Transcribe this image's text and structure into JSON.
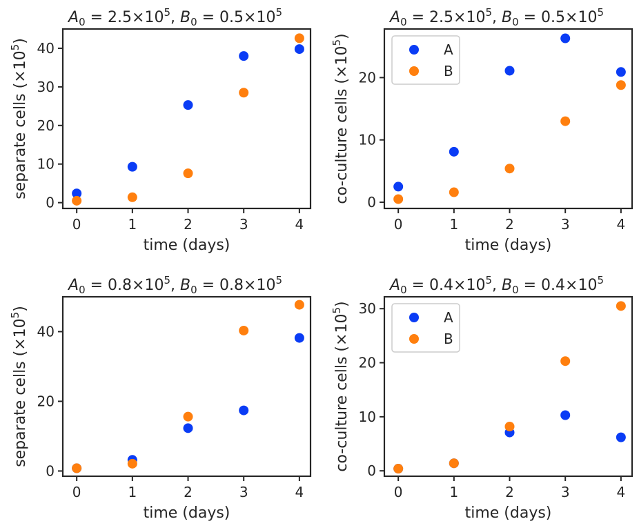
{
  "colors": {
    "A": "#0a3cf5",
    "B": "#ff7f0e"
  },
  "chart_data": [
    {
      "type": "scatter",
      "title": {
        "a_label": "A",
        "a_sub": "0",
        "a_val": "2.5×10",
        "a_exp": "5",
        "b_label": "B",
        "b_sub": "0",
        "b_val": "0.5×10",
        "b_exp": "5"
      },
      "xlabel": "time (days)",
      "ylabel": {
        "text": "separate cells (×10",
        "exp": "5",
        "close": ")"
      },
      "x": [
        0,
        1,
        2,
        3,
        4
      ],
      "xticks": [
        0,
        1,
        2,
        3,
        4
      ],
      "yticks": [
        0,
        10,
        20,
        30,
        40
      ],
      "xlim": [
        -0.25,
        4.2
      ],
      "ylim": [
        -1.5,
        45
      ],
      "legend": false,
      "series": [
        {
          "key": "A",
          "values": [
            2.4,
            9.3,
            25.3,
            38.0,
            39.8
          ]
        },
        {
          "key": "B",
          "values": [
            0.5,
            1.4,
            7.6,
            28.5,
            42.6
          ]
        }
      ]
    },
    {
      "type": "scatter",
      "title": {
        "a_label": "A",
        "a_sub": "0",
        "a_val": "2.5×10",
        "a_exp": "5",
        "b_label": "B",
        "b_sub": "0",
        "b_val": "0.5×10",
        "b_exp": "5"
      },
      "xlabel": "time (days)",
      "ylabel": {
        "text": "co-culture cells (×10",
        "exp": "5",
        "close": ")"
      },
      "x": [
        0,
        1,
        2,
        3,
        4
      ],
      "xticks": [
        0,
        1,
        2,
        3,
        4
      ],
      "yticks": [
        0,
        10,
        20
      ],
      "xlim": [
        -0.25,
        4.2
      ],
      "ylim": [
        -1.0,
        27.8
      ],
      "legend": true,
      "legend_position": "upper-left",
      "series": [
        {
          "key": "A",
          "name": "A",
          "values": [
            2.5,
            8.1,
            21.1,
            26.3,
            20.9
          ]
        },
        {
          "key": "B",
          "name": "B",
          "values": [
            0.5,
            1.6,
            5.4,
            13.0,
            18.8
          ]
        }
      ]
    },
    {
      "type": "scatter",
      "title": {
        "a_label": "A",
        "a_sub": "0",
        "a_val": "0.8×10",
        "a_exp": "5",
        "b_label": "B",
        "b_sub": "0",
        "b_val": "0.8×10",
        "b_exp": "5"
      },
      "xlabel": "time (days)",
      "ylabel": {
        "text": "separate cells (×10",
        "exp": "5",
        "close": ")"
      },
      "x": [
        0,
        1,
        2,
        3,
        4
      ],
      "xticks": [
        0,
        1,
        2,
        3,
        4
      ],
      "yticks": [
        0,
        20,
        40
      ],
      "xlim": [
        -0.25,
        4.2
      ],
      "ylim": [
        -1.5,
        50
      ],
      "legend": false,
      "series": [
        {
          "key": "A",
          "values": [
            0.8,
            3.2,
            12.3,
            17.4,
            38.2
          ]
        },
        {
          "key": "B",
          "values": [
            0.8,
            2.1,
            15.6,
            40.3,
            47.7
          ]
        }
      ]
    },
    {
      "type": "scatter",
      "title": {
        "a_label": "A",
        "a_sub": "0",
        "a_val": "0.4×10",
        "a_exp": "5",
        "b_label": "B",
        "b_sub": "0",
        "b_val": "0.4×10",
        "b_exp": "5"
      },
      "xlabel": "time (days)",
      "ylabel": {
        "text": "co-culture cells (×10",
        "exp": "5",
        "close": ")"
      },
      "x": [
        0,
        1,
        2,
        3,
        4
      ],
      "xticks": [
        0,
        1,
        2,
        3,
        4
      ],
      "yticks": [
        0,
        10,
        20,
        30
      ],
      "xlim": [
        -0.25,
        4.2
      ],
      "ylim": [
        -1.0,
        32.2
      ],
      "legend": true,
      "legend_position": "upper-left",
      "series": [
        {
          "key": "A",
          "name": "A",
          "values": [
            0.4,
            1.4,
            7.1,
            10.3,
            6.2
          ]
        },
        {
          "key": "B",
          "name": "B",
          "values": [
            0.4,
            1.4,
            8.2,
            20.3,
            30.5
          ]
        }
      ]
    }
  ]
}
